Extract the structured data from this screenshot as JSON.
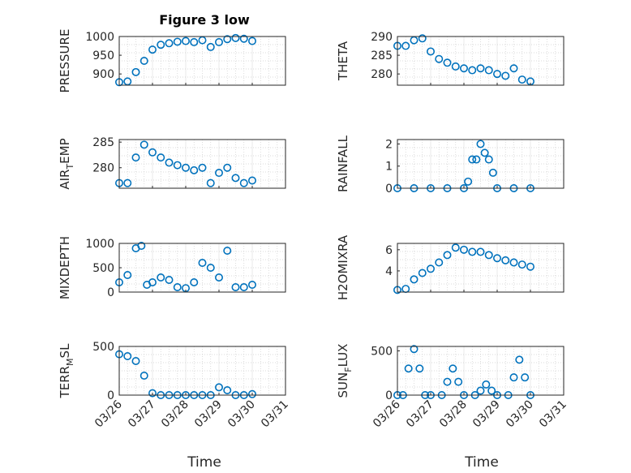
{
  "figure": {
    "title": "Figure 3 low",
    "xlabel": "Time",
    "marker_color": "#0072bd",
    "grid": "dotted minor grid on"
  },
  "chart_data": [
    {
      "type": "scatter",
      "ylabel": "PRESSURE",
      "xlim": [
        "03/26",
        "03/31"
      ],
      "ylim": [
        870,
        1000
      ],
      "yticks": [
        "900",
        "950",
        "1000"
      ],
      "x": [
        "03/26 00:00",
        "03/26 06:00",
        "03/26 12:00",
        "03/26 18:00",
        "03/27 00:00",
        "03/27 06:00",
        "03/27 12:00",
        "03/27 18:00",
        "03/28 00:00",
        "03/28 06:00",
        "03/28 12:00",
        "03/28 18:00",
        "03/29 00:00",
        "03/29 06:00",
        "03/29 12:00",
        "03/29 18:00",
        "03/30 00:00"
      ],
      "y": [
        878,
        880,
        905,
        935,
        965,
        978,
        982,
        986,
        988,
        985,
        990,
        972,
        985,
        993,
        996,
        994,
        988
      ]
    },
    {
      "type": "scatter",
      "ylabel": "THETA",
      "xlim": [
        "03/26",
        "03/31"
      ],
      "ylim": [
        277,
        290
      ],
      "yticks": [
        "280",
        "285",
        "290"
      ],
      "x": [
        "03/26 00:00",
        "03/26 06:00",
        "03/26 12:00",
        "03/26 18:00",
        "03/27 00:00",
        "03/27 06:00",
        "03/27 12:00",
        "03/27 18:00",
        "03/28 00:00",
        "03/28 06:00",
        "03/28 12:00",
        "03/28 18:00",
        "03/29 00:00",
        "03/29 06:00",
        "03/29 12:00",
        "03/29 18:00",
        "03/30 00:00"
      ],
      "y": [
        287.5,
        287.5,
        289,
        289.5,
        286,
        284,
        283,
        282,
        281.5,
        281,
        281.5,
        281,
        280,
        279.5,
        281.5,
        278.5,
        278
      ]
    },
    {
      "type": "scatter",
      "ylabel": "AIR_TEMP",
      "xlim": [
        "03/26",
        "03/31"
      ],
      "ylim": [
        276,
        285.5
      ],
      "yticks": [
        "280",
        "285"
      ],
      "x": [
        "03/26 00:00",
        "03/26 06:00",
        "03/26 12:00",
        "03/26 18:00",
        "03/27 00:00",
        "03/27 06:00",
        "03/27 12:00",
        "03/27 18:00",
        "03/28 00:00",
        "03/28 06:00",
        "03/28 12:00",
        "03/28 18:00",
        "03/29 00:00",
        "03/29 06:00",
        "03/29 12:00",
        "03/29 18:00",
        "03/30 00:00"
      ],
      "y": [
        277,
        277,
        282,
        284.5,
        283,
        282,
        281,
        280.5,
        280,
        279.5,
        280,
        277,
        279,
        280,
        278,
        277,
        277.5
      ]
    },
    {
      "type": "scatter",
      "ylabel": "RAINFALL",
      "xlim": [
        "03/26",
        "03/31"
      ],
      "ylim": [
        0,
        2.2
      ],
      "yticks": [
        "0",
        "1",
        "2"
      ],
      "x": [
        "03/26 00:00",
        "03/26 12:00",
        "03/27 00:00",
        "03/27 12:00",
        "03/28 00:00",
        "03/28 03:00",
        "03/28 06:00",
        "03/28 09:00",
        "03/28 12:00",
        "03/28 15:00",
        "03/28 18:00",
        "03/28 21:00",
        "03/29 00:00",
        "03/29 12:00",
        "03/30 00:00"
      ],
      "y": [
        0,
        0,
        0,
        0,
        0,
        0.3,
        1.3,
        1.3,
        2.0,
        1.6,
        1.3,
        0.7,
        0,
        0,
        0
      ]
    },
    {
      "type": "scatter",
      "ylabel": "MIXDEPTH",
      "xlim": [
        "03/26",
        "03/31"
      ],
      "ylim": [
        0,
        1000
      ],
      "yticks": [
        "0",
        "500",
        "1000"
      ],
      "x": [
        "03/26 00:00",
        "03/26 06:00",
        "03/26 12:00",
        "03/26 16:00",
        "03/26 20:00",
        "03/27 00:00",
        "03/27 06:00",
        "03/27 12:00",
        "03/27 18:00",
        "03/28 00:00",
        "03/28 06:00",
        "03/28 12:00",
        "03/28 18:00",
        "03/29 00:00",
        "03/29 06:00",
        "03/29 12:00",
        "03/29 18:00",
        "03/30 00:00"
      ],
      "y": [
        200,
        350,
        900,
        950,
        150,
        200,
        300,
        250,
        100,
        80,
        200,
        600,
        500,
        300,
        850,
        100,
        100,
        150
      ]
    },
    {
      "type": "scatter",
      "ylabel": "H2OMIXRA",
      "xlim": [
        "03/26",
        "03/31"
      ],
      "ylim": [
        2,
        6.6
      ],
      "yticks": [
        "4",
        "6"
      ],
      "x": [
        "03/26 00:00",
        "03/26 06:00",
        "03/26 12:00",
        "03/26 18:00",
        "03/27 00:00",
        "03/27 06:00",
        "03/27 12:00",
        "03/27 18:00",
        "03/28 00:00",
        "03/28 06:00",
        "03/28 12:00",
        "03/28 18:00",
        "03/29 00:00",
        "03/29 06:00",
        "03/29 12:00",
        "03/29 18:00",
        "03/30 00:00"
      ],
      "y": [
        2.2,
        2.3,
        3.2,
        3.8,
        4.2,
        4.8,
        5.5,
        6.2,
        6.0,
        5.8,
        5.8,
        5.5,
        5.2,
        5.0,
        4.8,
        4.6,
        4.4
      ]
    },
    {
      "type": "scatter",
      "ylabel": "TERR_MSL",
      "xlim": [
        "03/26",
        "03/31"
      ],
      "ylim": [
        0,
        500
      ],
      "yticks": [
        "0",
        "500"
      ],
      "x": [
        "03/26 00:00",
        "03/26 06:00",
        "03/26 12:00",
        "03/26 18:00",
        "03/27 00:00",
        "03/27 06:00",
        "03/27 12:00",
        "03/27 18:00",
        "03/28 00:00",
        "03/28 06:00",
        "03/28 12:00",
        "03/28 18:00",
        "03/29 00:00",
        "03/29 06:00",
        "03/29 12:00",
        "03/29 18:00",
        "03/30 00:00"
      ],
      "y": [
        420,
        400,
        350,
        200,
        20,
        0,
        0,
        0,
        0,
        0,
        0,
        0,
        80,
        50,
        0,
        0,
        10
      ]
    },
    {
      "type": "scatter",
      "ylabel": "SUN_FLUX",
      "xlim": [
        "03/26",
        "03/31"
      ],
      "ylim": [
        0,
        550
      ],
      "yticks": [
        "0",
        "500"
      ],
      "x": [
        "03/26 00:00",
        "03/26 04:00",
        "03/26 08:00",
        "03/26 12:00",
        "03/26 16:00",
        "03/26 20:00",
        "03/27 00:00",
        "03/27 08:00",
        "03/27 12:00",
        "03/27 16:00",
        "03/27 20:00",
        "03/28 00:00",
        "03/28 08:00",
        "03/28 12:00",
        "03/28 16:00",
        "03/28 20:00",
        "03/29 00:00",
        "03/29 08:00",
        "03/29 12:00",
        "03/29 16:00",
        "03/29 20:00",
        "03/30 00:00"
      ],
      "y": [
        0,
        0,
        300,
        520,
        300,
        0,
        0,
        0,
        150,
        300,
        150,
        0,
        0,
        50,
        120,
        50,
        0,
        0,
        200,
        400,
        200,
        0
      ]
    }
  ]
}
